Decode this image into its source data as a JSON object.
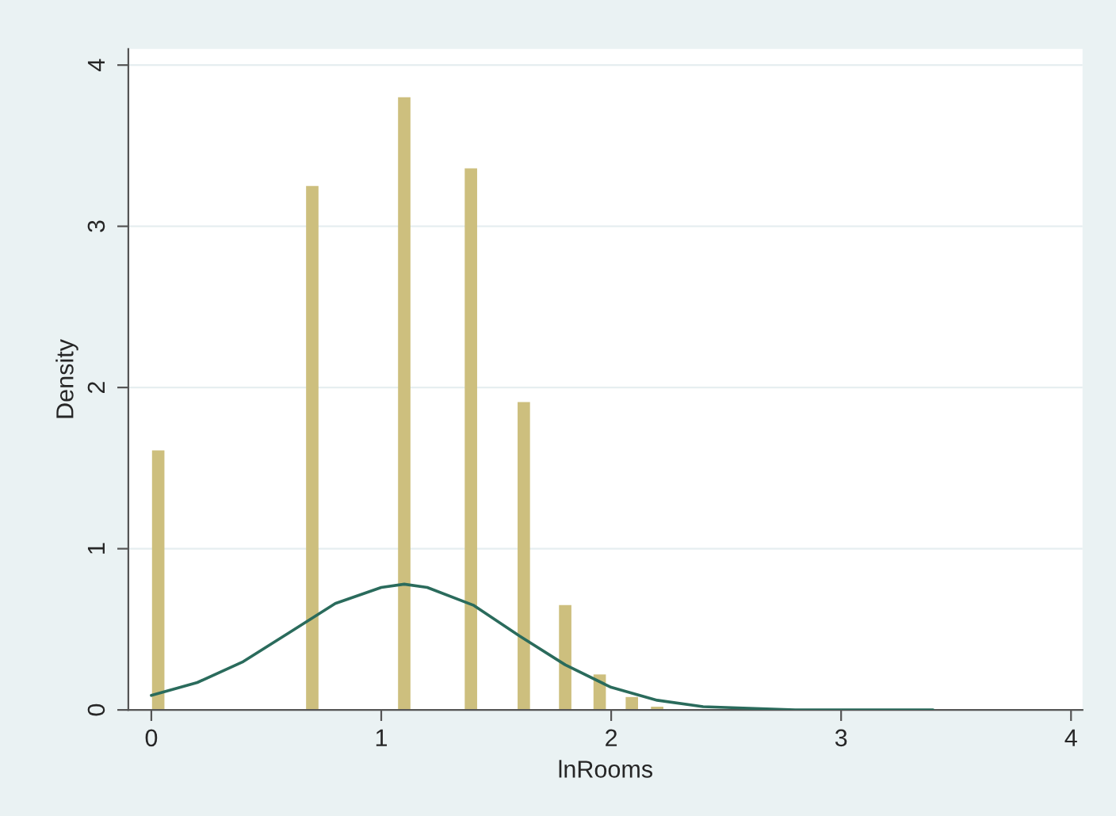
{
  "chart_data": {
    "type": "bar",
    "xlabel": "lnRooms",
    "ylabel": "Density",
    "xlim": [
      -0.1,
      4.05
    ],
    "xticks": [
      0,
      1,
      2,
      3,
      4
    ],
    "ylim": [
      0,
      4.1
    ],
    "yticks": [
      0,
      1,
      2,
      3,
      4
    ],
    "grid": "y",
    "series": [
      {
        "color": "#cdbf7e",
        "x": [
          0.03,
          0.7,
          1.1,
          1.39,
          1.62,
          1.8,
          1.95,
          2.09,
          2.2
        ],
        "values": [
          1.61,
          3.25,
          3.8,
          3.36,
          1.91,
          0.65,
          0.22,
          0.08,
          0.02
        ]
      },
      {
        "type": "line",
        "color": "#2a6b5c",
        "x": [
          0,
          0.2,
          0.4,
          0.6,
          0.8,
          1.0,
          1.1,
          1.2,
          1.4,
          1.6,
          1.8,
          2.0,
          2.2,
          2.4,
          2.6,
          2.8,
          3.0,
          3.2,
          3.4
        ],
        "values": [
          0.09,
          0.17,
          0.3,
          0.48,
          0.66,
          0.76,
          0.78,
          0.76,
          0.65,
          0.46,
          0.28,
          0.14,
          0.06,
          0.02,
          0.01,
          0,
          0,
          0,
          0
        ]
      }
    ]
  }
}
